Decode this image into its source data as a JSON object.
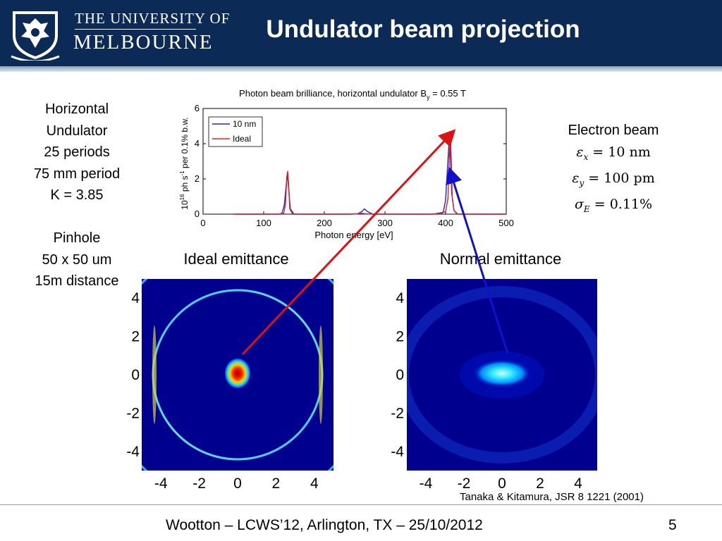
{
  "slide": {
    "title": "Undulator beam projection",
    "university_line1": "THE UNIVERSITY OF",
    "university_line2": "MELBOURNE"
  },
  "left_text": {
    "lines": [
      "Horizontal",
      "Undulator",
      "25 periods",
      "75 mm period",
      "K = 3.85"
    ],
    "pinhole": [
      "Pinhole",
      "50 x 50 um",
      "15m distance"
    ]
  },
  "electron_beam": {
    "title": "Electron beam",
    "eps_x": {
      "symbol": "ε",
      "sub": "x",
      "value": "= 10 nm"
    },
    "eps_y": {
      "symbol": "ε",
      "sub": "y",
      "value": "= 100 pm"
    },
    "sigma_e": {
      "symbol": "σ",
      "sub": "E",
      "value": "= 0.11%"
    }
  },
  "reference": "Tanaka & Kitamura, JSR 8 1221 (2001)",
  "footer": {
    "text": "Wootton – LCWS’12, Arlington, TX – 25/10/2012",
    "page": "5"
  },
  "colors": {
    "header": "#0b2a55",
    "series_10nm": "#2222dd",
    "series_ideal": "#dd2222",
    "map_background": "#00008f",
    "arrow_red": "#dd1111",
    "arrow_blue": "#1111cc"
  },
  "chart_data": [
    {
      "type": "line",
      "title": "Photon beam brilliance, horizontal undulator B",
      "title_sub": "y",
      "title_suffix": " = 0.55 T",
      "xlabel": "Photon energy [eV]",
      "ylabel_parts": {
        "pre": "10",
        "sup1": "16",
        "mid": " ph s",
        "sup2": "-1",
        "post": " per 0.1% b.w."
      },
      "xlim": [
        0,
        500
      ],
      "ylim": [
        0,
        6
      ],
      "xticks": [
        0,
        100,
        200,
        300,
        400,
        500
      ],
      "yticks": [
        0,
        2,
        4,
        6
      ],
      "legend": "top-left",
      "series": [
        {
          "name": "10 nm",
          "color": "#2222dd",
          "x": [
            50,
            125,
            130,
            134,
            137,
            139,
            141,
            144,
            150,
            240,
            255,
            262,
            266,
            271,
            280,
            380,
            396,
            400,
            403,
            406,
            408,
            410,
            414,
            420,
            500
          ],
          "y": [
            0,
            0,
            0.05,
            0.5,
            1.6,
            2.3,
            1.5,
            0.3,
            0,
            0,
            0.02,
            0.15,
            0.3,
            0.15,
            0,
            0,
            0.1,
            0.8,
            2.6,
            4.3,
            3.2,
            1.2,
            0.2,
            0,
            0
          ]
        },
        {
          "name": "Ideal",
          "color": "#dd2222",
          "x": [
            50,
            128,
            133,
            136,
            138,
            139.5,
            141,
            143,
            147,
            152,
            245,
            255,
            262,
            268,
            280,
            390,
            400,
            404,
            406,
            407.5,
            409,
            411,
            414,
            419,
            500
          ],
          "y": [
            0,
            0,
            0.05,
            0.6,
            2.1,
            2.45,
            1.7,
            0.3,
            0.05,
            0,
            0,
            0.02,
            0.05,
            0.02,
            0,
            0,
            0.15,
            0.9,
            3.2,
            4.65,
            3.5,
            0.9,
            0.2,
            0,
            0
          ]
        }
      ]
    },
    {
      "type": "heatmap",
      "title": "Ideal emittance",
      "xticks": [
        -4,
        -2,
        0,
        2,
        4
      ],
      "yticks": [
        4,
        2,
        0,
        -2,
        -4
      ],
      "xlim": [
        -5,
        5
      ],
      "ylim": [
        -5,
        5
      ]
    },
    {
      "type": "heatmap",
      "title": "Normal emittance",
      "xticks": [
        -4,
        -2,
        0,
        2,
        4
      ],
      "yticks": [
        4,
        2,
        0,
        -2,
        -4
      ],
      "xlim": [
        -5,
        5
      ],
      "ylim": [
        -5,
        5
      ]
    }
  ]
}
